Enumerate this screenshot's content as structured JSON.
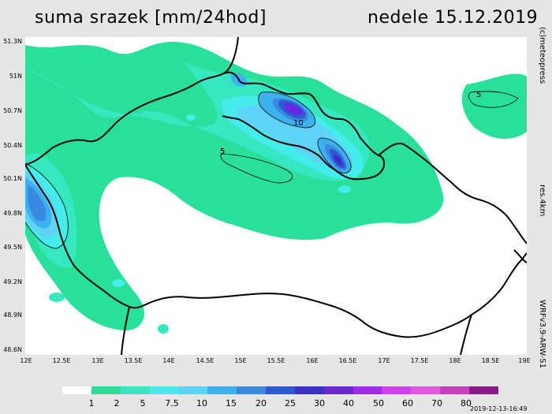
{
  "header": {
    "title": "suma srazek [mm/24hod]",
    "date": "nedele 15.12.2019"
  },
  "side": {
    "copyright": "(c)meteopress",
    "resolution": "res.4km",
    "model": "WRFv3.9-ARW-S1"
  },
  "lat_ticks": [
    "51.3N",
    "51N",
    "50.7N",
    "50.4N",
    "50.1N",
    "49.8N",
    "49.5N",
    "49.2N",
    "48.9N",
    "48.6N"
  ],
  "lon_ticks": [
    "12E",
    "12.5E",
    "13E",
    "13.5E",
    "14E",
    "14.5E",
    "15E",
    "15.5E",
    "16E",
    "16.5E",
    "17E",
    "17.5E",
    "18E",
    "18.5E",
    "19E"
  ],
  "contour_labels": {
    "c10": "10",
    "c5a": "5",
    "c5b": "5"
  },
  "legend": {
    "labels": [
      "1",
      "2",
      "5",
      "7.5",
      "10",
      "15",
      "20",
      "25",
      "30",
      "40",
      "50",
      "60",
      "70",
      "80"
    ],
    "colors": [
      "#ffffff",
      "#28e09a",
      "#36e8c0",
      "#44ecec",
      "#5fd3f5",
      "#3fb0ee",
      "#3a89e0",
      "#2f59d2",
      "#3c2fd0",
      "#6b26e0",
      "#a12bf0",
      "#d23fe6",
      "#e256e2",
      "#c93fbf",
      "#8a1a8a"
    ]
  },
  "timestamp": "2019-12-13-16:49"
}
